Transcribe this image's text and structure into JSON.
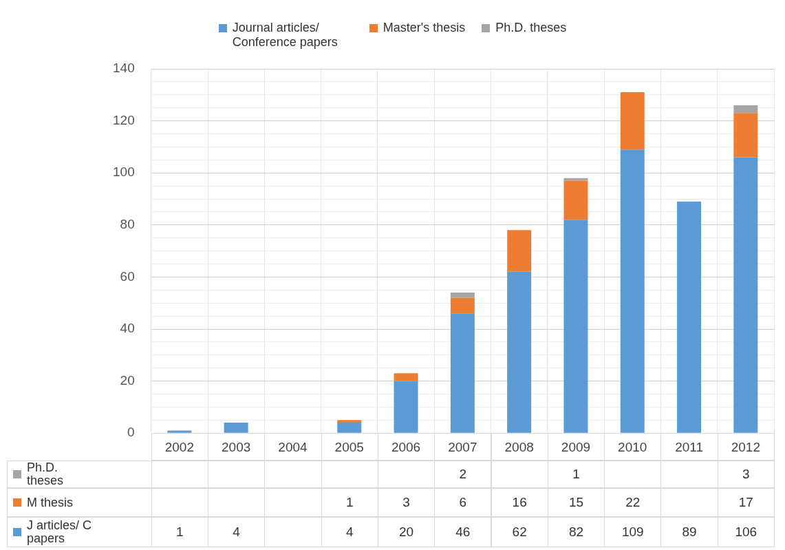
{
  "chart_data": {
    "type": "bar",
    "stacked": true,
    "categories": [
      "2002",
      "2003",
      "2004",
      "2005",
      "2006",
      "2007",
      "2008",
      "2009",
      "2010",
      "2011",
      "2012"
    ],
    "series": [
      {
        "name": "Journal articles/ Conference papers",
        "color": "#5b9bd5",
        "values": [
          1,
          4,
          null,
          4,
          20,
          46,
          62,
          82,
          109,
          89,
          106
        ]
      },
      {
        "name": "Master's thesis",
        "color": "#ed7d31",
        "values": [
          null,
          null,
          null,
          1,
          3,
          6,
          16,
          15,
          22,
          null,
          17
        ]
      },
      {
        "name": "Ph.D. theses",
        "color": "#a5a5a5",
        "values": [
          null,
          null,
          null,
          null,
          null,
          2,
          null,
          1,
          null,
          null,
          3
        ]
      }
    ],
    "ylim": [
      0,
      140
    ],
    "yticks": [
      0,
      {
        "value": 5,
        "label": null
      },
      {
        "value": 10,
        "label": null
      },
      {
        "value": 15,
        "label": null
      },
      20,
      {
        "value": 25,
        "label": null
      },
      {
        "value": 30,
        "label": null
      },
      {
        "value": 35,
        "label": null
      },
      40,
      {
        "value": 45,
        "label": null
      },
      {
        "value": 50,
        "label": null
      },
      {
        "value": 55,
        "label": null
      },
      60,
      {
        "value": 65,
        "label": null
      },
      {
        "value": 70,
        "label": null
      },
      {
        "value": 75,
        "label": null
      },
      80,
      {
        "value": 85,
        "label": null
      },
      {
        "value": 90,
        "label": null
      },
      {
        "value": 95,
        "label": null
      },
      100,
      {
        "value": 105,
        "label": null
      },
      {
        "value": 110,
        "label": null
      },
      {
        "value": 115,
        "label": null
      },
      120,
      {
        "value": 125,
        "label": null
      },
      {
        "value": 130,
        "label": null
      },
      {
        "value": 135,
        "label": null
      },
      140
    ],
    "grid": true,
    "legend": "top",
    "data_labels": true,
    "annotations": [
      "Ph.D. theses",
      "M thesis",
      "J articles/ C papers"
    ]
  }
}
